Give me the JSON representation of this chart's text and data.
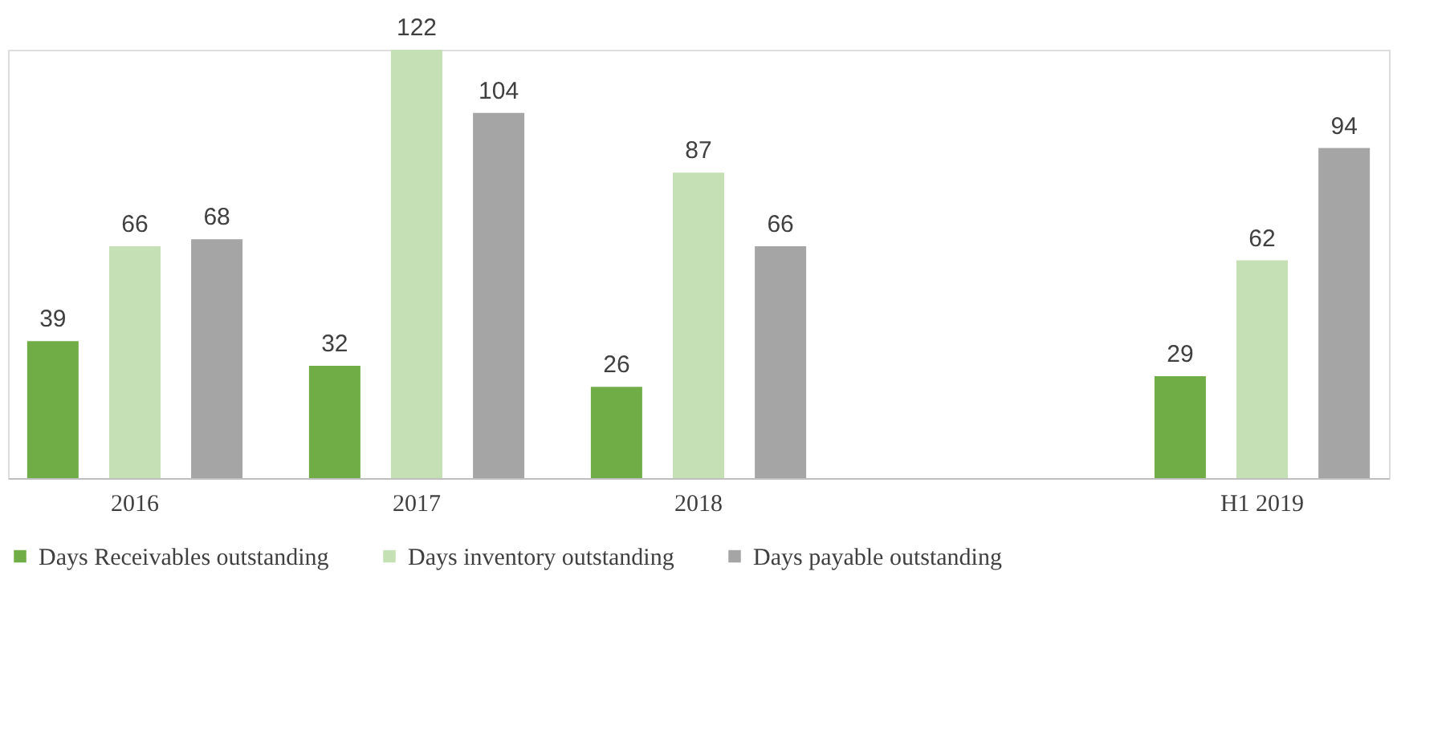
{
  "chart_data": {
    "type": "bar",
    "categories": [
      "2016",
      "2017",
      "2018",
      null,
      "H1 2019"
    ],
    "series": [
      {
        "name": "Days Receivables outstanding",
        "color": "#70ad47",
        "values": [
          39,
          32,
          26,
          null,
          29
        ]
      },
      {
        "name": "Days inventory outstanding",
        "color": "#c5e0b4",
        "values": [
          66,
          122,
          87,
          null,
          62
        ]
      },
      {
        "name": "Days payable outstanding",
        "color": "#a5a5a5",
        "values": [
          68,
          104,
          66,
          null,
          94
        ]
      }
    ],
    "data_labels": true,
    "grid": false,
    "legend": "bottom"
  }
}
